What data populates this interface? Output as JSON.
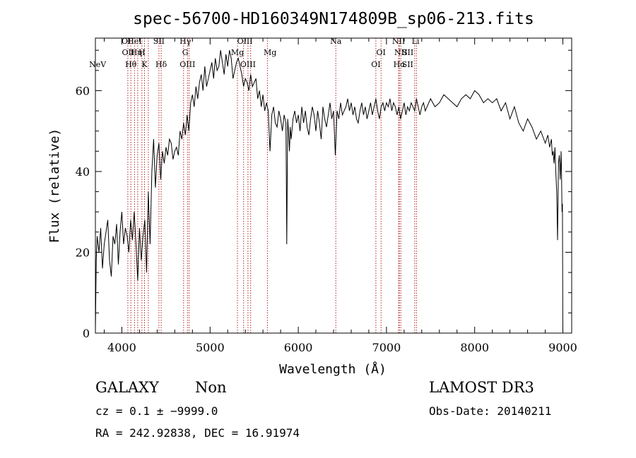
{
  "chart_data": {
    "type": "line",
    "title": "spec-56700-HD160349N174809B_sp06-213.fits",
    "xlabel": "Wavelength (Å)",
    "ylabel": "Flux (relative)",
    "xlim": [
      3700,
      9100
    ],
    "ylim": [
      0,
      73
    ],
    "xticks": [
      4000,
      5000,
      6000,
      7000,
      8000,
      9000
    ],
    "yticks": [
      0,
      20,
      40,
      60
    ],
    "xtick_labels": [
      "4000",
      "5000",
      "6000",
      "7000",
      "8000",
      "9000"
    ],
    "ytick_labels": [
      "0",
      "20",
      "40",
      "60"
    ],
    "grid": false,
    "line_color": "#000000",
    "marker_color": "#b22222",
    "spectrum": {
      "x": [
        3700,
        3710,
        3720,
        3740,
        3760,
        3780,
        3800,
        3820,
        3840,
        3860,
        3880,
        3900,
        3920,
        3940,
        3960,
        3980,
        4000,
        4020,
        4040,
        4060,
        4080,
        4100,
        4120,
        4140,
        4160,
        4180,
        4200,
        4220,
        4240,
        4260,
        4280,
        4300,
        4320,
        4340,
        4360,
        4380,
        4400,
        4420,
        4440,
        4460,
        4480,
        4500,
        4520,
        4540,
        4560,
        4580,
        4600,
        4620,
        4640,
        4660,
        4680,
        4700,
        4720,
        4740,
        4760,
        4780,
        4800,
        4820,
        4840,
        4860,
        4880,
        4900,
        4920,
        4940,
        4960,
        4980,
        5000,
        5020,
        5040,
        5060,
        5080,
        5100,
        5120,
        5140,
        5160,
        5180,
        5200,
        5220,
        5240,
        5260,
        5280,
        5300,
        5320,
        5340,
        5360,
        5380,
        5400,
        5420,
        5440,
        5460,
        5480,
        5500,
        5520,
        5540,
        5560,
        5580,
        5600,
        5620,
        5640,
        5660,
        5680,
        5700,
        5720,
        5740,
        5760,
        5780,
        5800,
        5820,
        5840,
        5860,
        5870,
        5880,
        5890,
        5900,
        5910,
        5920,
        5940,
        5960,
        5980,
        6000,
        6020,
        6040,
        6060,
        6080,
        6100,
        6120,
        6140,
        6160,
        6180,
        6200,
        6220,
        6240,
        6260,
        6280,
        6300,
        6320,
        6340,
        6360,
        6380,
        6400,
        6420,
        6440,
        6460,
        6480,
        6500,
        6520,
        6540,
        6560,
        6580,
        6600,
        6620,
        6640,
        6660,
        6680,
        6700,
        6720,
        6740,
        6760,
        6780,
        6800,
        6820,
        6840,
        6860,
        6880,
        6900,
        6920,
        6940,
        6960,
        6980,
        7000,
        7020,
        7040,
        7060,
        7080,
        7100,
        7120,
        7140,
        7160,
        7180,
        7200,
        7220,
        7240,
        7260,
        7280,
        7300,
        7320,
        7340,
        7360,
        7380,
        7400,
        7420,
        7440,
        7460,
        7480,
        7500,
        7550,
        7600,
        7650,
        7700,
        7750,
        7800,
        7850,
        7900,
        7950,
        8000,
        8050,
        8100,
        8150,
        8200,
        8250,
        8300,
        8350,
        8400,
        8450,
        8500,
        8550,
        8600,
        8650,
        8700,
        8750,
        8800,
        8830,
        8850,
        8870,
        8880,
        8890,
        8900,
        8910,
        8920,
        8930,
        8940,
        8950,
        8960,
        8970,
        8980,
        8985,
        8990,
        8995,
        9000
      ],
      "y": [
        0.5,
        18,
        24,
        20,
        26,
        16,
        22,
        25,
        28,
        18,
        14,
        24,
        22,
        27,
        17,
        25,
        30,
        22,
        26,
        24,
        20,
        28,
        23,
        30,
        22,
        13,
        26,
        18,
        24,
        28,
        15,
        35,
        22,
        40,
        48,
        36,
        44,
        47,
        38,
        45,
        42,
        46,
        44,
        48,
        47,
        43,
        45,
        46,
        44,
        50,
        48,
        52,
        49,
        54,
        50,
        57,
        59,
        56,
        61,
        58,
        62,
        64,
        60,
        66,
        61,
        63,
        65,
        67,
        63,
        68,
        65,
        66,
        70,
        67,
        64,
        69,
        66,
        70,
        68,
        63,
        65,
        67,
        68,
        66,
        64,
        61,
        63,
        62,
        60,
        64,
        61,
        62,
        63,
        58,
        60,
        56,
        59,
        55,
        57,
        55,
        45,
        54,
        56,
        52,
        51,
        55,
        53,
        50,
        54,
        52,
        22,
        53,
        50,
        45,
        51,
        48,
        53,
        55,
        52,
        54,
        50,
        56,
        52,
        55,
        51,
        49,
        53,
        56,
        54,
        50,
        55,
        52,
        48,
        56,
        53,
        51,
        54,
        57,
        53,
        55,
        44,
        55,
        53,
        57,
        54,
        55,
        56,
        58,
        55,
        57,
        54,
        56,
        53,
        52,
        55,
        57,
        54,
        56,
        53,
        55,
        57,
        54,
        56,
        58,
        55,
        53,
        56,
        57,
        55,
        57,
        56,
        58,
        55,
        57,
        56,
        54,
        56,
        53,
        55,
        57,
        54,
        56,
        55,
        57,
        56,
        55,
        58,
        56,
        54,
        56,
        57,
        55,
        56,
        57,
        58,
        56,
        57,
        59,
        58,
        57,
        56,
        58,
        59,
        58,
        60,
        59,
        57,
        58,
        57,
        58,
        55,
        57,
        53,
        56,
        52,
        50,
        53,
        51,
        48,
        50,
        47,
        49,
        46,
        48,
        44,
        45,
        42,
        46,
        40,
        35,
        23,
        42,
        44,
        38,
        45,
        40,
        30,
        32,
        0
      ]
    },
    "lines": [
      {
        "label": "NeV",
        "wavelength": 3726,
        "row": 3
      },
      {
        "label": "OII",
        "wavelength": 4068,
        "row": 1
      },
      {
        "label": "OII",
        "wavelength": 4072,
        "row": 2
      },
      {
        "label": "Hθ",
        "wavelength": 4102,
        "row": 3
      },
      {
        "label": "HeI",
        "wavelength": 4144,
        "row": 1
      },
      {
        "label": "Hη",
        "wavelength": 4163,
        "row": 2
      },
      {
        "label": "H",
        "wavelength": 4227,
        "row": 2
      },
      {
        "label": "K",
        "wavelength": 4257,
        "row": 3
      },
      {
        "label": "SII",
        "wavelength": 4420,
        "row": 1
      },
      {
        "label": "Hδ",
        "wavelength": 4446,
        "row": 3
      },
      {
        "label": "Hγ",
        "wavelength": 4719,
        "row": 1
      },
      {
        "label": "G",
        "wavelength": 4719,
        "row": 2
      },
      {
        "label": "OIII",
        "wavelength": 4744,
        "row": 3
      },
      {
        "label": "OIII",
        "wavelength": 5395,
        "row": 1
      },
      {
        "label": "Mg",
        "wavelength": 5310,
        "row": 2
      },
      {
        "label": "OIII",
        "wavelength": 5430,
        "row": 3
      },
      {
        "label": "Mg",
        "wavelength": 5680,
        "row": 2
      },
      {
        "label": "Na",
        "wavelength": 6426,
        "row": 1
      },
      {
        "label": "OI",
        "wavelength": 6938,
        "row": 2
      },
      {
        "label": "OI",
        "wavelength": 6880,
        "row": 3
      },
      {
        "label": "NII",
        "wavelength": 7138,
        "row": 1
      },
      {
        "label": "NII",
        "wavelength": 7163,
        "row": 2
      },
      {
        "label": "Hα",
        "wavelength": 7146,
        "row": 3
      },
      {
        "label": "SII",
        "wavelength": 7242,
        "row": 2
      },
      {
        "label": "SII",
        "wavelength": 7240,
        "row": 3
      },
      {
        "label": "Li",
        "wavelength": 7330,
        "row": 1
      }
    ],
    "marker_x": [
      4068,
      4102,
      4144,
      4180,
      4227,
      4257,
      4300,
      4420,
      4446,
      4700,
      4744,
      4762,
      5310,
      5380,
      5430,
      5460,
      5650,
      6426,
      6880,
      6938,
      7138,
      7146,
      7163,
      7320,
      7340
    ]
  },
  "info": {
    "obj_class": "GALAXY",
    "obj_subclass": "Non",
    "survey": "LAMOST DR3",
    "cz": "cz = 0.1 ± −9999.0",
    "obs_date": "Obs-Date: 20140211",
    "radec": "RA = 242.92838, DEC =  16.91974"
  }
}
